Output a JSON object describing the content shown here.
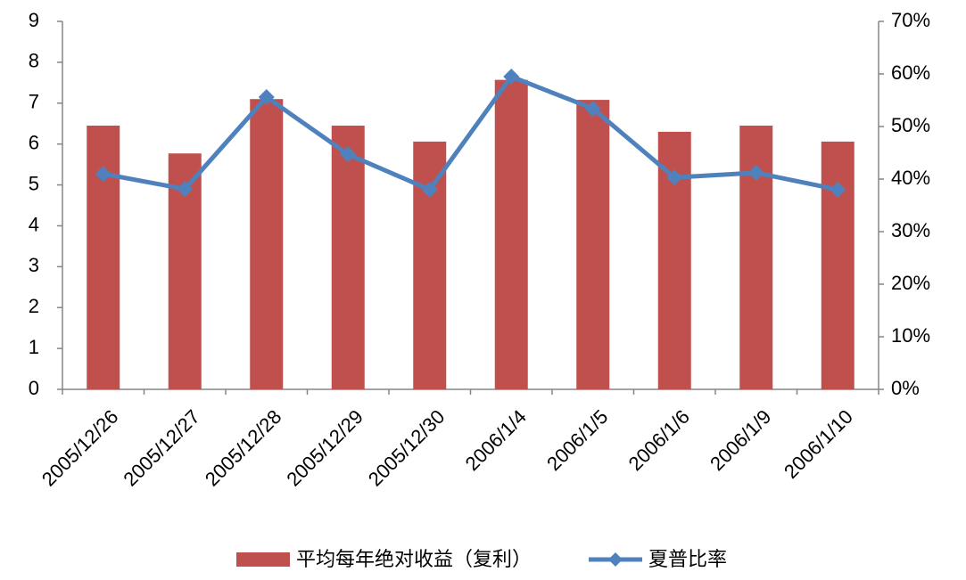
{
  "chart_data": {
    "type": "bar_line",
    "categories": [
      "2005/12/26",
      "2005/12/27",
      "2005/12/28",
      "2005/12/29",
      "2005/12/30",
      "2006/1/4",
      "2006/1/5",
      "2006/1/6",
      "2006/1/9",
      "2006/1/10"
    ],
    "series": [
      {
        "name": "平均每年绝对收益（复利）",
        "type": "bar",
        "color": "#c0504d",
        "values": [
          6.45,
          5.77,
          7.1,
          6.45,
          6.06,
          7.57,
          7.08,
          6.3,
          6.45,
          6.06
        ]
      },
      {
        "name": "夏普比率",
        "type": "line",
        "axis": "y2",
        "color": "#4f81bd",
        "values": [
          41,
          38.1,
          55.6,
          44.7,
          38,
          59.5,
          53.4,
          40.3,
          41.2,
          38
        ]
      }
    ],
    "ylim": [
      0,
      9
    ],
    "yticks": [
      0,
      1,
      2,
      3,
      4,
      5,
      6,
      7,
      8,
      9
    ],
    "y2lim": [
      0,
      70
    ],
    "y2ticks": [
      {
        "value": 0,
        "label": "0%"
      },
      {
        "value": 10,
        "label": "10%"
      },
      {
        "value": 20,
        "label": "20%"
      },
      {
        "value": 30,
        "label": "30%"
      },
      {
        "value": 40,
        "label": "40%"
      },
      {
        "value": 50,
        "label": "50%"
      },
      {
        "value": 60,
        "label": "60%"
      },
      {
        "value": 70,
        "label": "70%"
      }
    ],
    "grid": false,
    "legend": "bottom"
  }
}
